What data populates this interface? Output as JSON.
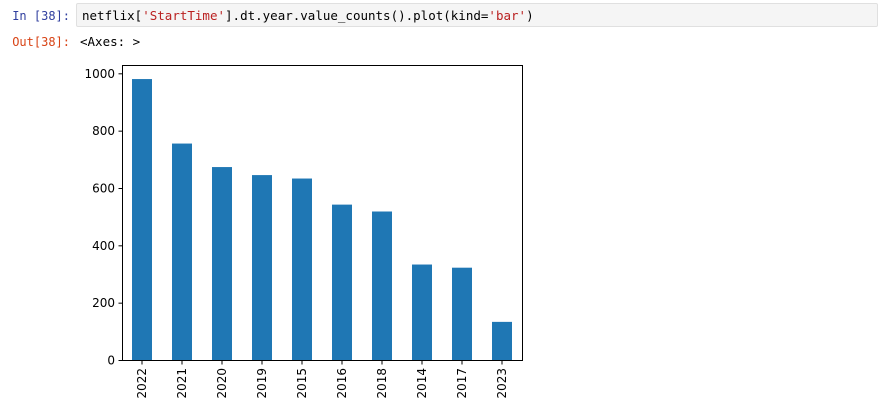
{
  "cell": {
    "in_prompt": "In [38]:",
    "out_prompt": "Out[38]:",
    "code": {
      "part1": "netflix[",
      "string1": "'StartTime'",
      "part2": "].dt.year.value_counts().plot(kind=",
      "string2": "'bar'",
      "part3": ")"
    },
    "output_text": "<Axes: >"
  },
  "colors": {
    "bar": "#1f77b4",
    "in_prompt": "#303f9f",
    "out_prompt": "#d84315",
    "string": "#ba2121"
  },
  "chart_data": {
    "type": "bar",
    "categories": [
      "2022",
      "2021",
      "2020",
      "2019",
      "2015",
      "2016",
      "2018",
      "2014",
      "2017",
      "2023"
    ],
    "values": [
      980,
      755,
      673,
      645,
      633,
      542,
      518,
      333,
      322,
      133
    ],
    "title": "",
    "xlabel": "",
    "ylabel": "",
    "ylim": [
      0,
      1029
    ],
    "yticks": [
      0,
      200,
      400,
      600,
      800,
      1000
    ],
    "grid": false,
    "legend": false
  }
}
